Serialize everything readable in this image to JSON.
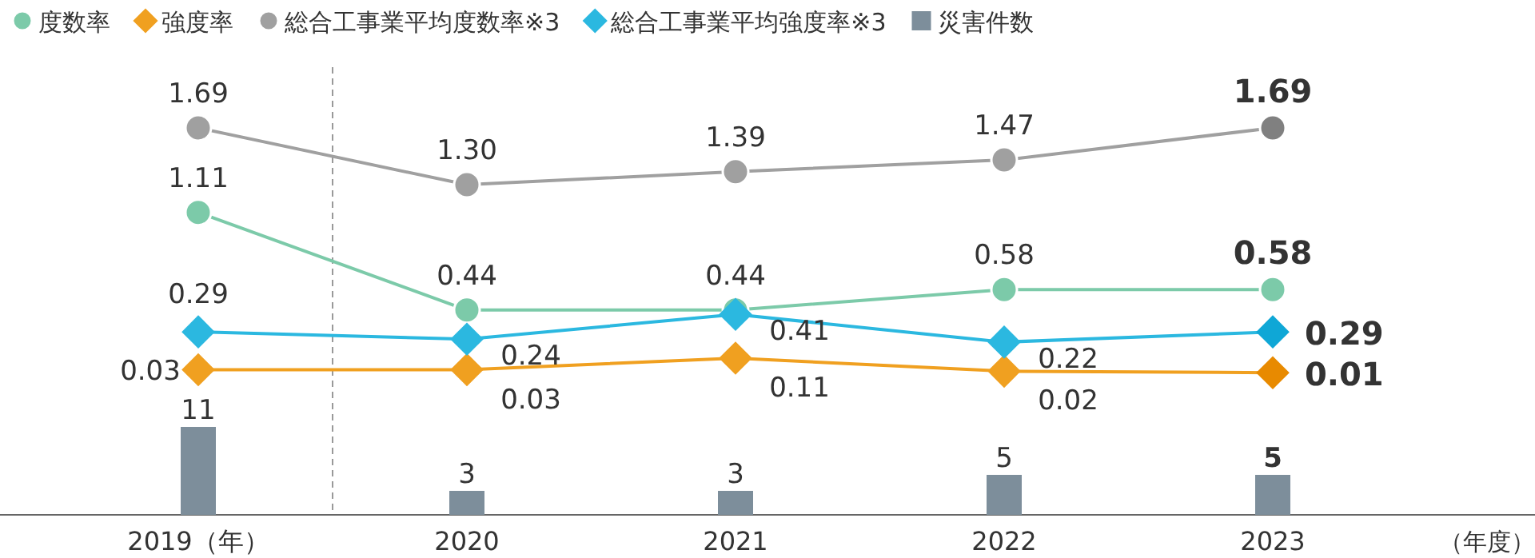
{
  "chart_data": {
    "type": "line",
    "categories": [
      "2019（年）",
      "2020",
      "2021",
      "2022",
      "2023"
    ],
    "xlabel": "（年度）",
    "legend": "top",
    "y2lim": [
      0,
      11
    ],
    "series": [
      {
        "name": "度数率",
        "color": "#7ccaa9",
        "marker": "circle",
        "values": [
          1.11,
          0.44,
          0.44,
          0.58,
          0.58
        ],
        "value_labels": [
          "1.11",
          "0.44",
          "0.44",
          "0.58",
          "0.58"
        ]
      },
      {
        "name": "強度率",
        "color": "#f0a020",
        "marker": "diamond",
        "values": [
          0.03,
          0.03,
          0.11,
          0.02,
          0.01
        ],
        "value_labels": [
          "0.03",
          "0.03",
          "0.11",
          "0.02",
          "0.01"
        ]
      },
      {
        "name": "総合工事業平均度数率※3",
        "color": "#a0a0a0",
        "marker": "circle",
        "values": [
          1.69,
          1.3,
          1.39,
          1.47,
          1.69
        ],
        "value_labels": [
          "1.69",
          "1.30",
          "1.39",
          "1.47",
          "1.69"
        ]
      },
      {
        "name": "総合工事業平均強度率※3",
        "color": "#2bb8e0",
        "marker": "diamond",
        "values": [
          0.29,
          0.24,
          0.41,
          0.22,
          0.29
        ],
        "value_labels": [
          "0.29",
          "0.24",
          "0.41",
          "0.22",
          "0.29"
        ]
      },
      {
        "name": "災害件数",
        "type": "bar",
        "axis": "y2",
        "color": "#7d8e9b",
        "marker": "square",
        "values": [
          11,
          3,
          3,
          5,
          5
        ],
        "value_labels": [
          "11",
          "3",
          "3",
          "5",
          "5"
        ]
      }
    ]
  }
}
